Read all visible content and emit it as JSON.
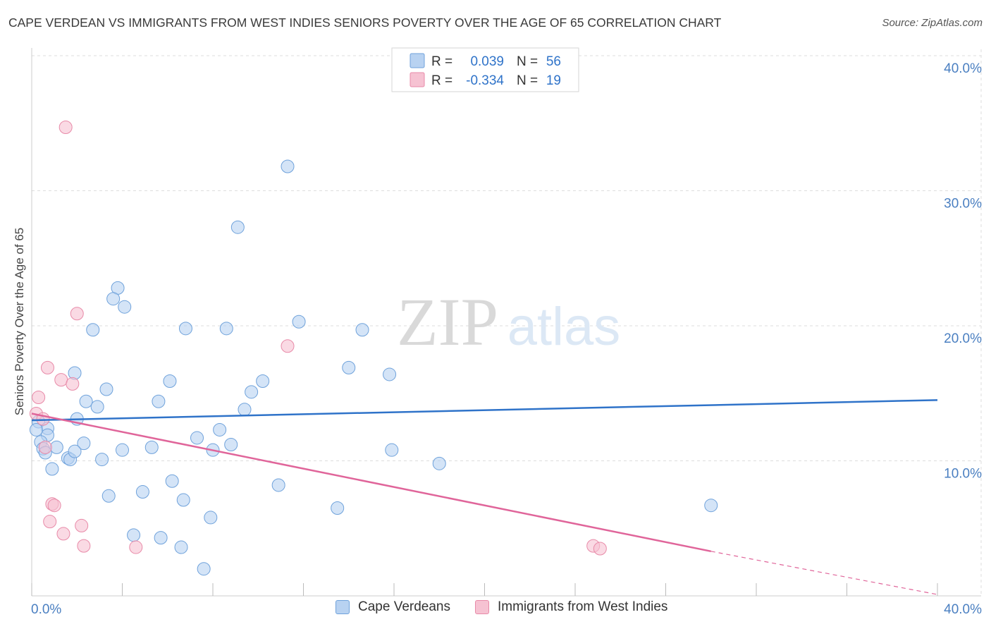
{
  "title": "CAPE VERDEAN VS IMMIGRANTS FROM WEST INDIES SENIORS POVERTY OVER THE AGE OF 65 CORRELATION CHART",
  "source": "Source: ZipAtlas.com",
  "watermark": {
    "zip": "ZIP",
    "atlas": "atlas"
  },
  "colors": {
    "blue_fill": "#b8d2f1",
    "blue_stroke": "#6fa2db",
    "blue_line": "#2f73c9",
    "pink_fill": "#f6c2d2",
    "pink_stroke": "#e88aa8",
    "pink_line": "#e0659a",
    "axis_text": "#4a7fc1",
    "grid": "#dddddd"
  },
  "legend": {
    "row1": {
      "r_label": "R =",
      "r_value": "0.039",
      "n_label": "N =",
      "n_value": "56"
    },
    "row2": {
      "r_label": "R =",
      "r_value": "-0.334",
      "n_label": "N =",
      "n_value": "19"
    }
  },
  "chart_data": {
    "type": "scatter",
    "title": "CAPE VERDEAN VS IMMIGRANTS FROM WEST INDIES SENIORS POVERTY OVER THE AGE OF 65 CORRELATION CHART",
    "xlabel": "",
    "ylabel": "Seniors Poverty Over the Age of 65",
    "xlim": [
      0,
      40
    ],
    "ylim": [
      0,
      40
    ],
    "x_tick_labels": [
      "0.0%",
      "40.0%"
    ],
    "y_ticks": [
      10,
      20,
      30,
      40
    ],
    "y_tick_labels": [
      "10.0%",
      "20.0%",
      "30.0%",
      "40.0%"
    ],
    "grid": true,
    "legend_position": "top-center",
    "series": [
      {
        "name": "Cape Verdeans",
        "color": "#b8d2f1",
        "x": [
          11.3,
          9.1,
          3.8,
          3.6,
          4.1,
          6.8,
          11.8,
          2.7,
          0.3,
          0.7,
          1.9,
          2.4,
          14.0,
          14.6,
          15.8,
          15.9,
          3.3,
          5.6,
          6.1,
          7.3,
          9.4,
          10.2,
          8.8,
          9.7,
          0.7,
          1.1,
          2.3,
          2.9,
          4.0,
          4.9,
          5.3,
          6.2,
          6.6,
          7.6,
          8.0,
          8.3,
          8.6,
          0.2,
          0.4,
          0.5,
          0.6,
          0.9,
          1.6,
          1.7,
          1.9,
          2.0,
          3.1,
          3.4,
          4.5,
          5.7,
          6.7,
          7.9,
          10.9,
          13.5,
          18.0,
          30.0
        ],
        "y": [
          31.8,
          27.3,
          22.8,
          22.0,
          21.4,
          19.8,
          20.3,
          19.7,
          12.9,
          12.4,
          16.5,
          14.4,
          16.9,
          19.7,
          16.4,
          10.8,
          15.3,
          14.4,
          15.9,
          11.7,
          13.8,
          15.9,
          11.2,
          15.1,
          11.9,
          11.0,
          11.3,
          14.0,
          10.8,
          7.7,
          11.0,
          8.5,
          3.6,
          2.0,
          10.8,
          12.3,
          19.8,
          12.3,
          11.4,
          10.9,
          10.6,
          9.4,
          10.2,
          10.1,
          10.7,
          13.1,
          10.1,
          7.4,
          4.5,
          4.3,
          7.1,
          5.8,
          8.2,
          6.5,
          9.8,
          6.7
        ],
        "trend": {
          "x": [
            0,
            40
          ],
          "y": [
            13.0,
            14.5
          ]
        }
      },
      {
        "name": "Immigrants from West Indies",
        "color": "#f6c2d2",
        "x": [
          1.5,
          2.0,
          0.2,
          0.3,
          0.5,
          0.7,
          1.3,
          1.8,
          2.2,
          0.6,
          0.8,
          0.9,
          1.0,
          1.4,
          2.3,
          4.6,
          11.3,
          24.8,
          25.1
        ],
        "y": [
          34.7,
          20.9,
          13.5,
          14.7,
          13.1,
          16.9,
          16.0,
          15.7,
          5.2,
          11.0,
          5.5,
          6.8,
          6.7,
          4.6,
          3.7,
          3.6,
          18.5,
          3.7,
          3.5
        ],
        "trend": {
          "x": [
            0,
            30
          ],
          "y": [
            13.5,
            3.3
          ]
        },
        "trend_dashed": {
          "x": [
            30,
            40
          ],
          "y": [
            3.3,
            0.1
          ]
        }
      }
    ]
  }
}
